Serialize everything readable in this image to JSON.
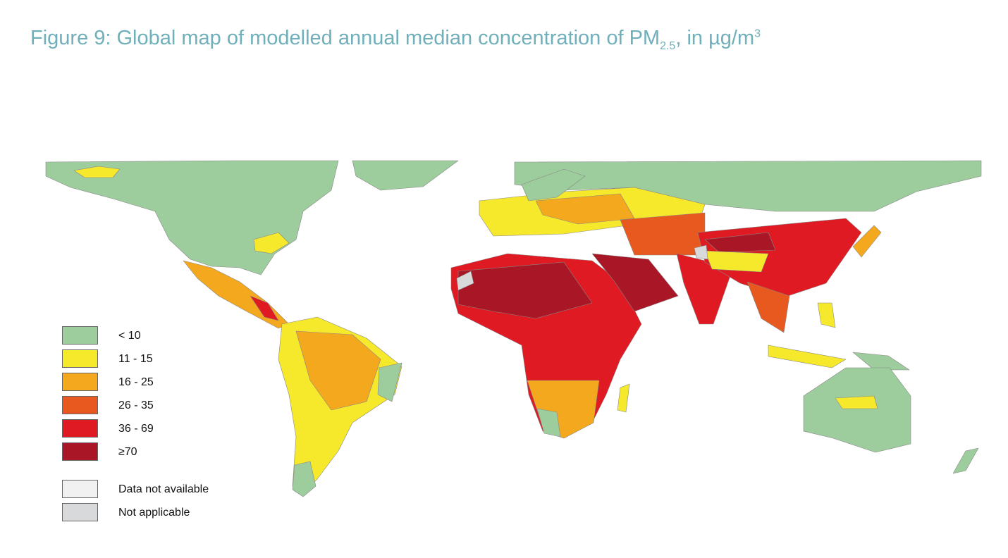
{
  "figure": {
    "title": {
      "text": "Figure 9: Global map of modelled annual median concentration of PM",
      "subscript": "2.5",
      "suffix": ", in µg/m",
      "superscript": "3"
    },
    "legend": {
      "items": [
        {
          "label": "< 10",
          "color": "#9dcd9c"
        },
        {
          "label": "11 - 15",
          "color": "#f6e82b"
        },
        {
          "label": "16 - 25",
          "color": "#f4a81d"
        },
        {
          "label": "26 - 35",
          "color": "#e8591f"
        },
        {
          "label": "36 - 69",
          "color": "#df1a22"
        },
        {
          "label": "≥70",
          "color": "#a91626"
        },
        {
          "label": "Data not available",
          "color": "#f1f1f1"
        },
        {
          "label": "Not applicable",
          "color": "#d7d9da"
        }
      ]
    }
  }
}
